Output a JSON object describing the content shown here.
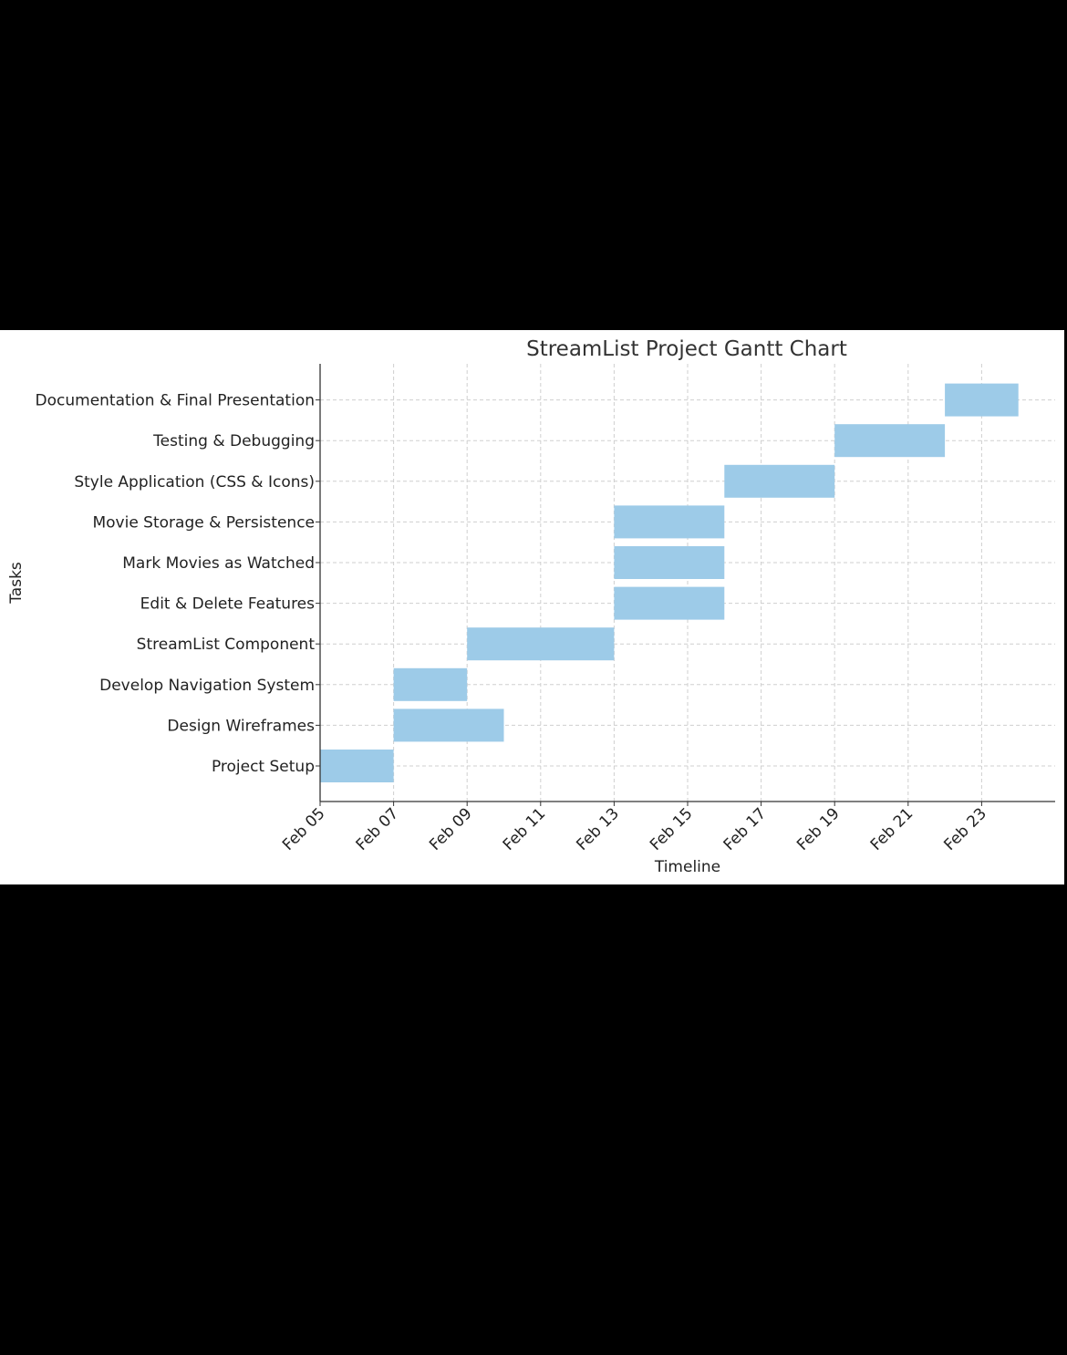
{
  "chart_data": {
    "type": "gantt",
    "title": "StreamList Project Gantt Chart",
    "xlabel": "Timeline",
    "ylabel": "Tasks",
    "year": 2024,
    "xlim": [
      "2024-02-05",
      "2024-02-25"
    ],
    "x_ticks": [
      {
        "date": "2024-02-05",
        "label": "Feb 05"
      },
      {
        "date": "2024-02-07",
        "label": "Feb 07"
      },
      {
        "date": "2024-02-09",
        "label": "Feb 09"
      },
      {
        "date": "2024-02-11",
        "label": "Feb 11"
      },
      {
        "date": "2024-02-13",
        "label": "Feb 13"
      },
      {
        "date": "2024-02-15",
        "label": "Feb 15"
      },
      {
        "date": "2024-02-17",
        "label": "Feb 17"
      },
      {
        "date": "2024-02-19",
        "label": "Feb 19"
      },
      {
        "date": "2024-02-21",
        "label": "Feb 21"
      },
      {
        "date": "2024-02-23",
        "label": "Feb 23"
      }
    ],
    "grid": true,
    "bar_color": "#9dcbe8",
    "tasks": [
      {
        "name": "Project Setup",
        "start": "2024-02-05",
        "end": "2024-02-07"
      },
      {
        "name": "Design Wireframes",
        "start": "2024-02-07",
        "end": "2024-02-10"
      },
      {
        "name": "Develop Navigation System",
        "start": "2024-02-07",
        "end": "2024-02-09"
      },
      {
        "name": "StreamList Component",
        "start": "2024-02-09",
        "end": "2024-02-13"
      },
      {
        "name": "Edit & Delete Features",
        "start": "2024-02-13",
        "end": "2024-02-16"
      },
      {
        "name": "Mark Movies as Watched",
        "start": "2024-02-13",
        "end": "2024-02-16"
      },
      {
        "name": "Movie Storage & Persistence",
        "start": "2024-02-13",
        "end": "2024-02-16"
      },
      {
        "name": "Style Application (CSS & Icons)",
        "start": "2024-02-16",
        "end": "2024-02-19"
      },
      {
        "name": "Testing & Debugging",
        "start": "2024-02-19",
        "end": "2024-02-22"
      },
      {
        "name": "Documentation & Final Presentation",
        "start": "2024-02-22",
        "end": "2024-02-24"
      }
    ]
  }
}
